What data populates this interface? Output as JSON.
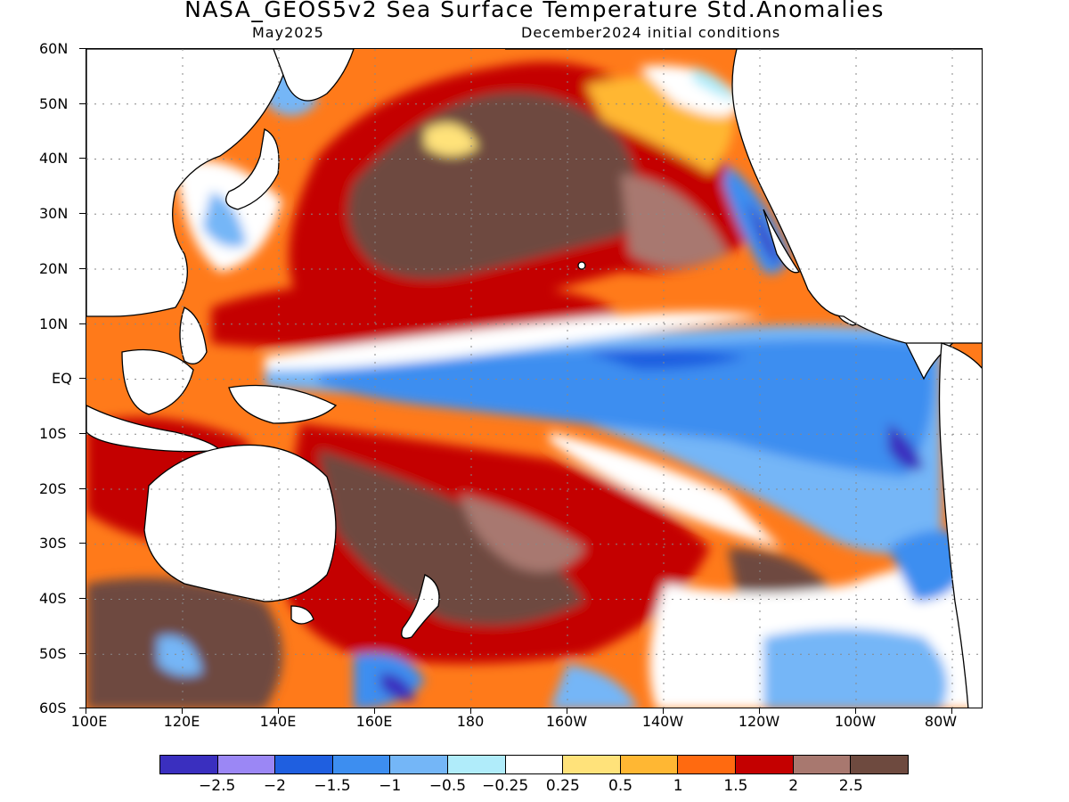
{
  "title": "NASA_GEOS5v2 Sea Surface Temperature Std.Anomalies",
  "subtitle_left": "May2025",
  "subtitle_right": "December2024 initial conditions",
  "lat_labels": [
    "60N",
    "50N",
    "40N",
    "30N",
    "20N",
    "10N",
    "EQ",
    "10S",
    "20S",
    "30S",
    "40S",
    "50S",
    "60S"
  ],
  "lon_labels": [
    "100E",
    "120E",
    "140E",
    "160E",
    "180",
    "160W",
    "140W",
    "120W",
    "100W",
    "80W"
  ],
  "colorbar": {
    "colors": [
      "#3a2fbf",
      "#9b87f5",
      "#1f5fe0",
      "#3d8ef0",
      "#74b6f7",
      "#b0ecfa",
      "#ffffff",
      "#ffe27a",
      "#ffb733",
      "#ff6a10",
      "#c40000",
      "#a8786f",
      "#6e4a3f"
    ],
    "labels": [
      "−2.5",
      "−2",
      "−1.5",
      "−1",
      "−0.5",
      "−0.25",
      "0.25",
      "0.5",
      "1",
      "1.5",
      "2",
      "2.5"
    ]
  },
  "map_colors": {
    "land": "#ffffff",
    "coast": "#000000",
    "grid": "#888888"
  }
}
